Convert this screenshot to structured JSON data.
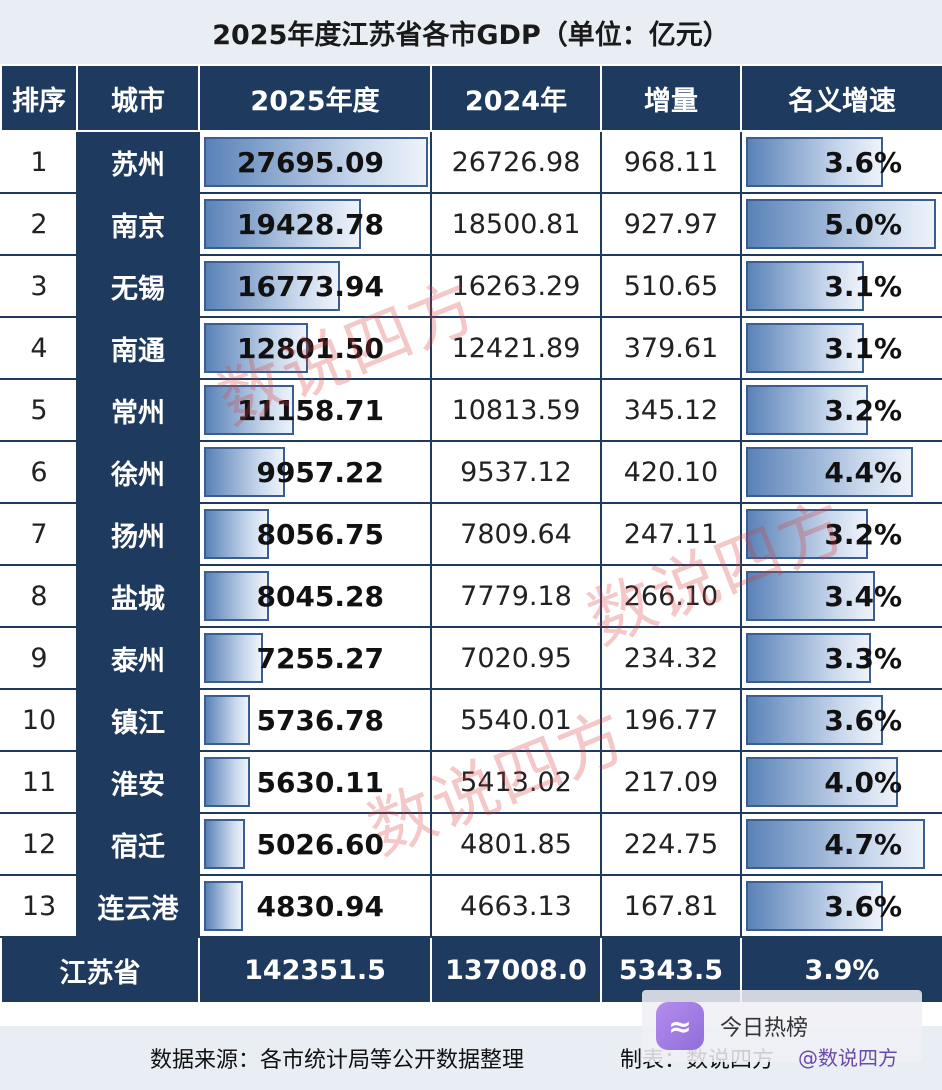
{
  "title": "2025年度江苏省各市GDP（单位：亿元）",
  "headers": {
    "rank": "排序",
    "city": "城市",
    "y2025": "2025年度",
    "y2024": "2024年",
    "inc": "增量",
    "rate": "名义增速"
  },
  "chart_data": {
    "type": "table",
    "title": "2025年度江苏省各市GDP（单位：亿元）",
    "columns": [
      "排序",
      "城市",
      "2025年度",
      "2024年",
      "增量",
      "名义增速"
    ],
    "rows": [
      {
        "rank": "1",
        "city": "苏州",
        "y2025": "27695.09",
        "y2024": "26726.98",
        "inc": "968.11",
        "rate": "3.6%",
        "v2025": 27695.09,
        "vrate": 3.6
      },
      {
        "rank": "2",
        "city": "南京",
        "y2025": "19428.78",
        "y2024": "18500.81",
        "inc": "927.97",
        "rate": "5.0%",
        "v2025": 19428.78,
        "vrate": 5.0
      },
      {
        "rank": "3",
        "city": "无锡",
        "y2025": "16773.94",
        "y2024": "16263.29",
        "inc": "510.65",
        "rate": "3.1%",
        "v2025": 16773.94,
        "vrate": 3.1
      },
      {
        "rank": "4",
        "city": "南通",
        "y2025": "12801.50",
        "y2024": "12421.89",
        "inc": "379.61",
        "rate": "3.1%",
        "v2025": 12801.5,
        "vrate": 3.1
      },
      {
        "rank": "5",
        "city": "常州",
        "y2025": "11158.71",
        "y2024": "10813.59",
        "inc": "345.12",
        "rate": "3.2%",
        "v2025": 11158.71,
        "vrate": 3.2
      },
      {
        "rank": "6",
        "city": "徐州",
        "y2025": "9957.22",
        "y2024": "9537.12",
        "inc": "420.10",
        "rate": "4.4%",
        "v2025": 9957.22,
        "vrate": 4.4
      },
      {
        "rank": "7",
        "city": "扬州",
        "y2025": "8056.75",
        "y2024": "7809.64",
        "inc": "247.11",
        "rate": "3.2%",
        "v2025": 8056.75,
        "vrate": 3.2
      },
      {
        "rank": "8",
        "city": "盐城",
        "y2025": "8045.28",
        "y2024": "7779.18",
        "inc": "266.10",
        "rate": "3.4%",
        "v2025": 8045.28,
        "vrate": 3.4
      },
      {
        "rank": "9",
        "city": "泰州",
        "y2025": "7255.27",
        "y2024": "7020.95",
        "inc": "234.32",
        "rate": "3.3%",
        "v2025": 7255.27,
        "vrate": 3.3
      },
      {
        "rank": "10",
        "city": "镇江",
        "y2025": "5736.78",
        "y2024": "5540.01",
        "inc": "196.77",
        "rate": "3.6%",
        "v2025": 5736.78,
        "vrate": 3.6
      },
      {
        "rank": "11",
        "city": "淮安",
        "y2025": "5630.11",
        "y2024": "5413.02",
        "inc": "217.09",
        "rate": "4.0%",
        "v2025": 5630.11,
        "vrate": 4.0
      },
      {
        "rank": "12",
        "city": "宿迁",
        "y2025": "5026.60",
        "y2024": "4801.85",
        "inc": "224.75",
        "rate": "4.7%",
        "v2025": 5026.6,
        "vrate": 4.7
      },
      {
        "rank": "13",
        "city": "连云港",
        "y2025": "4830.94",
        "y2024": "4663.13",
        "inc": "167.81",
        "rate": "3.6%",
        "v2025": 4830.94,
        "vrate": 3.6
      }
    ],
    "total": {
      "label": "江苏省",
      "y2025": "142351.5",
      "y2024": "137008.0",
      "inc": "5343.5",
      "rate": "3.9%"
    }
  },
  "footer": {
    "source": "数据来源：各市统计局等公开数据整理",
    "maker": "制表：数说四方"
  },
  "stamp_text": "数说四方",
  "watermark": {
    "app": "今日热榜",
    "handle": "@数说四方"
  },
  "colors": {
    "header_bg": "#1f3a5f",
    "bar_dark": "#5a82b8",
    "bar_light": "#eef3fa",
    "stamp": "#d63a3a"
  }
}
